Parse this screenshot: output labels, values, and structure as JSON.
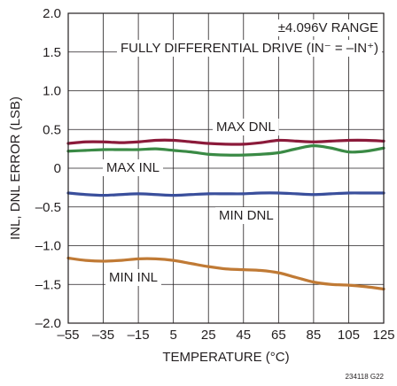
{
  "chart_data": {
    "type": "line",
    "xlabel": "TEMPERATURE (°C)",
    "ylabel": "INL, DNL ERROR (LSB)",
    "xlim": [
      -55,
      125
    ],
    "ylim": [
      -2.0,
      2.0
    ],
    "xticks": [
      -55,
      -35,
      -15,
      5,
      25,
      45,
      65,
      85,
      105,
      125
    ],
    "xtick_labels": [
      "–55",
      "–35",
      "–15",
      "5",
      "25",
      "45",
      "65",
      "85",
      "105",
      "125"
    ],
    "yticks": [
      2.0,
      1.5,
      1.0,
      0.5,
      0,
      -0.5,
      -1.0,
      -1.5,
      -2.0
    ],
    "ytick_labels": [
      "2.0",
      "1.5",
      "1.0",
      "0.5",
      "0",
      "–0.5",
      "–1.0",
      "–1.5",
      "–2.0"
    ],
    "grid": true,
    "annotations": {
      "range": "±4.096V RANGE",
      "drive": "FULLY DIFFERENTIAL DRIVE (IN⁻ = –IN⁺)",
      "figure_id": "234118 G22"
    },
    "series": [
      {
        "name": "MAX DNL",
        "color": "#8b1a3a",
        "x": [
          -55,
          -45,
          -35,
          -25,
          -15,
          -5,
          5,
          15,
          25,
          35,
          45,
          55,
          65,
          75,
          85,
          95,
          105,
          115,
          125
        ],
        "y": [
          0.32,
          0.34,
          0.34,
          0.33,
          0.34,
          0.36,
          0.36,
          0.34,
          0.32,
          0.31,
          0.31,
          0.33,
          0.36,
          0.35,
          0.34,
          0.35,
          0.36,
          0.36,
          0.35
        ]
      },
      {
        "name": "MAX INL",
        "color": "#3a8a45",
        "x": [
          -55,
          -45,
          -35,
          -25,
          -15,
          -5,
          5,
          15,
          25,
          35,
          45,
          55,
          65,
          75,
          85,
          95,
          105,
          115,
          125
        ],
        "y": [
          0.22,
          0.23,
          0.24,
          0.24,
          0.24,
          0.25,
          0.23,
          0.21,
          0.18,
          0.17,
          0.17,
          0.18,
          0.2,
          0.25,
          0.29,
          0.26,
          0.21,
          0.22,
          0.26
        ]
      },
      {
        "name": "MIN DNL",
        "color": "#3a4f9c",
        "x": [
          -55,
          -45,
          -35,
          -25,
          -15,
          -5,
          5,
          15,
          25,
          35,
          45,
          55,
          65,
          75,
          85,
          95,
          105,
          115,
          125
        ],
        "y": [
          -0.32,
          -0.34,
          -0.35,
          -0.34,
          -0.33,
          -0.34,
          -0.35,
          -0.34,
          -0.33,
          -0.33,
          -0.33,
          -0.32,
          -0.32,
          -0.33,
          -0.34,
          -0.33,
          -0.32,
          -0.32,
          -0.32
        ]
      },
      {
        "name": "MIN INL",
        "color": "#c07a35",
        "x": [
          -55,
          -45,
          -35,
          -25,
          -15,
          -5,
          5,
          15,
          25,
          35,
          45,
          55,
          65,
          75,
          85,
          95,
          105,
          115,
          125
        ],
        "y": [
          -1.16,
          -1.19,
          -1.2,
          -1.19,
          -1.17,
          -1.17,
          -1.19,
          -1.23,
          -1.27,
          -1.3,
          -1.31,
          -1.32,
          -1.35,
          -1.41,
          -1.47,
          -1.5,
          -1.51,
          -1.53,
          -1.56
        ]
      }
    ]
  }
}
